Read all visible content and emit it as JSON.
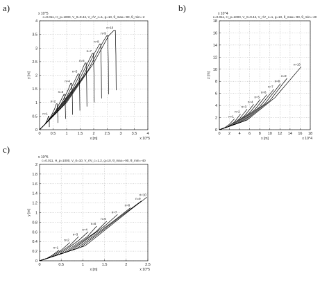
{
  "panel_labels": [
    "a)",
    "b)",
    "c)"
  ],
  "chart_data": [
    {
      "type": "line",
      "panel": "a)",
      "title": "c=0.011, H_p=1000, V_0=9.44, V_r/V_c=1, g=10, θ_max=-90, θ_min=-2",
      "xlabel": "x [m]",
      "ylabel": "y [m]",
      "x_exponent": "x 10^5",
      "y_exponent": "x 10^5",
      "xlim": [
        0,
        4
      ],
      "ylim": [
        0,
        4
      ],
      "xticks": [
        "0",
        "0.5",
        "1",
        "1.5",
        "2",
        "2.5",
        "3",
        "3.5",
        "4"
      ],
      "yticks": [
        "0",
        "0.5",
        "1",
        "1.5",
        "2",
        "2.5",
        "3",
        "3.5",
        "4"
      ],
      "grid": true,
      "series": [
        {
          "name": "n=1",
          "points": [
            [
              0,
              0
            ],
            [
              0.1,
              0.1
            ],
            [
              0.2,
              0.2
            ],
            [
              0.28,
              0.35
            ],
            [
              0.33,
              0.5
            ],
            [
              0.35,
              0.5
            ],
            [
              0.36,
              0.3
            ],
            [
              0.36,
              0.1
            ]
          ]
        },
        {
          "name": "n=2",
          "points": [
            [
              0,
              0
            ],
            [
              0.2,
              0.2
            ],
            [
              0.4,
              0.45
            ],
            [
              0.55,
              0.75
            ],
            [
              0.62,
              0.95
            ],
            [
              0.65,
              0.95
            ],
            [
              0.67,
              0.6
            ],
            [
              0.68,
              0.25
            ]
          ]
        },
        {
          "name": "n=3",
          "points": [
            [
              0,
              0
            ],
            [
              0.3,
              0.3
            ],
            [
              0.6,
              0.7
            ],
            [
              0.8,
              1.1
            ],
            [
              0.9,
              1.3
            ],
            [
              0.93,
              1.3
            ],
            [
              0.95,
              0.9
            ],
            [
              0.96,
              0.4
            ]
          ]
        },
        {
          "name": "n=4",
          "points": [
            [
              0,
              0
            ],
            [
              0.4,
              0.4
            ],
            [
              0.8,
              0.95
            ],
            [
              1.05,
              1.45
            ],
            [
              1.15,
              1.7
            ],
            [
              1.19,
              1.7
            ],
            [
              1.21,
              1.2
            ],
            [
              1.22,
              0.55
            ]
          ]
        },
        {
          "name": "n=5",
          "points": [
            [
              0,
              0
            ],
            [
              0.5,
              0.5
            ],
            [
              1.0,
              1.2
            ],
            [
              1.3,
              1.8
            ],
            [
              1.42,
              2.05
            ],
            [
              1.46,
              2.05
            ],
            [
              1.48,
              1.45
            ],
            [
              1.49,
              0.7
            ]
          ]
        },
        {
          "name": "n=6",
          "points": [
            [
              0,
              0
            ],
            [
              0.6,
              0.6
            ],
            [
              1.2,
              1.45
            ],
            [
              1.55,
              2.15
            ],
            [
              1.68,
              2.45
            ],
            [
              1.72,
              2.45
            ],
            [
              1.74,
              1.75
            ],
            [
              1.75,
              0.85
            ]
          ]
        },
        {
          "name": "n=7",
          "points": [
            [
              0,
              0
            ],
            [
              0.7,
              0.7
            ],
            [
              1.4,
              1.7
            ],
            [
              1.8,
              2.5
            ],
            [
              1.95,
              2.8
            ],
            [
              1.99,
              2.8
            ],
            [
              2.01,
              2.0
            ],
            [
              2.02,
              1.0
            ]
          ]
        },
        {
          "name": "n=8",
          "points": [
            [
              0,
              0
            ],
            [
              0.8,
              0.8
            ],
            [
              1.6,
              1.95
            ],
            [
              2.05,
              2.85
            ],
            [
              2.22,
              3.15
            ],
            [
              2.26,
              3.15
            ],
            [
              2.28,
              2.25
            ],
            [
              2.29,
              1.15
            ]
          ]
        },
        {
          "name": "n=9",
          "points": [
            [
              0,
              0
            ],
            [
              0.9,
              0.9
            ],
            [
              1.8,
              2.2
            ],
            [
              2.3,
              3.15
            ],
            [
              2.48,
              3.45
            ],
            [
              2.52,
              3.45
            ],
            [
              2.54,
              2.5
            ],
            [
              2.55,
              1.3
            ]
          ]
        },
        {
          "name": "n=10",
          "points": [
            [
              0,
              0
            ],
            [
              1.0,
              1.0
            ],
            [
              2.0,
              2.45
            ],
            [
              2.55,
              3.45
            ],
            [
              2.75,
              3.65
            ],
            [
              2.8,
              3.65
            ],
            [
              2.82,
              2.75
            ],
            [
              2.83,
              1.45
            ]
          ]
        }
      ]
    },
    {
      "type": "line",
      "panel": "b)",
      "title": "c=0.011, H_p=1000, V_0=9.44, V_r/V_c=1, g=10, θ_max=-90, θ_min=-40",
      "xlabel": "x [m]",
      "ylabel": "z [m]",
      "x_exponent": "x 10^4",
      "y_exponent": "x 10^4",
      "xlim": [
        0,
        18
      ],
      "ylim": [
        0,
        18
      ],
      "xticks": [
        "0",
        "2",
        "4",
        "6",
        "8",
        "10",
        "12",
        "14",
        "16",
        "18"
      ],
      "yticks": [
        "0",
        "2",
        "4",
        "6",
        "8",
        "10",
        "12",
        "14",
        "16",
        "18"
      ],
      "grid": true,
      "series": [
        {
          "name": "n=1",
          "points": [
            [
              0,
              0
            ],
            [
              1,
              0.3
            ],
            [
              2,
              0.9
            ],
            [
              3,
              1.8
            ]
          ]
        },
        {
          "name": "n=2",
          "points": [
            [
              0,
              0
            ],
            [
              1.5,
              0.4
            ],
            [
              3,
              1.3
            ],
            [
              4.2,
              2.6
            ]
          ]
        },
        {
          "name": "n=3",
          "points": [
            [
              0,
              0
            ],
            [
              2,
              0.55
            ],
            [
              4,
              1.8
            ],
            [
              5.5,
              3.4
            ]
          ]
        },
        {
          "name": "n=4",
          "points": [
            [
              0,
              0
            ],
            [
              2.5,
              0.7
            ],
            [
              5,
              2.3
            ],
            [
              6.8,
              4.2
            ]
          ]
        },
        {
          "name": "n=5",
          "points": [
            [
              0,
              0
            ],
            [
              3,
              0.85
            ],
            [
              6,
              2.8
            ],
            [
              8.1,
              5.0
            ]
          ]
        },
        {
          "name": "n=6",
          "points": [
            [
              0,
              0
            ],
            [
              3.5,
              1.0
            ],
            [
              7,
              3.3
            ],
            [
              9.4,
              5.8
            ]
          ]
        },
        {
          "name": "n=7",
          "points": [
            [
              0,
              0
            ],
            [
              4,
              1.15
            ],
            [
              8,
              3.8
            ],
            [
              10.8,
              6.7
            ]
          ]
        },
        {
          "name": "n=8",
          "points": [
            [
              0,
              0
            ],
            [
              4.5,
              1.3
            ],
            [
              9,
              4.3
            ],
            [
              12.1,
              7.6
            ]
          ]
        },
        {
          "name": "n=9",
          "points": [
            [
              0,
              0
            ],
            [
              5,
              1.45
            ],
            [
              10,
              4.8
            ],
            [
              13.4,
              8.5
            ]
          ]
        },
        {
          "name": "n=10",
          "points": [
            [
              0,
              0
            ],
            [
              5.5,
              1.6
            ],
            [
              11,
              5.3
            ],
            [
              16.2,
              10.4
            ]
          ]
        }
      ]
    },
    {
      "type": "line",
      "panel": "c)",
      "title": "c=0.011, H_p=1000, V_0=10, V_r/V_c=1.2, g=10, θ_max=-90, θ_min=-40",
      "xlabel": "x [m]",
      "ylabel": "y [m]",
      "x_exponent": "x 10^5",
      "y_exponent": "x 10^5",
      "xlim": [
        0,
        2.5
      ],
      "ylim": [
        0,
        2
      ],
      "xticks": [
        "0",
        "0.5",
        "1",
        "1.5",
        "2",
        "2.5"
      ],
      "yticks": [
        "0",
        "0.2",
        "0.4",
        "0.6",
        "0.8",
        "1",
        "1.2",
        "1.4",
        "1.6",
        "1.8",
        "2"
      ],
      "grid": true,
      "series": [
        {
          "name": "n=1",
          "points": [
            [
              0,
              0
            ],
            [
              0.15,
              0.04
            ],
            [
              0.3,
              0.12
            ],
            [
              0.45,
              0.22
            ]
          ]
        },
        {
          "name": "n=2",
          "points": [
            [
              0,
              0
            ],
            [
              0.25,
              0.07
            ],
            [
              0.5,
              0.22
            ],
            [
              0.7,
              0.38
            ]
          ]
        },
        {
          "name": "n=3",
          "points": [
            [
              0,
              0
            ],
            [
              0.35,
              0.1
            ],
            [
              0.7,
              0.32
            ],
            [
              0.9,
              0.5
            ]
          ]
        },
        {
          "name": "n=4",
          "points": [
            [
              0,
              0
            ],
            [
              0.45,
              0.13
            ],
            [
              0.9,
              0.42
            ],
            [
              1.12,
              0.6
            ]
          ]
        },
        {
          "name": "n=5",
          "points": [
            [
              0,
              0
            ],
            [
              0.55,
              0.16
            ],
            [
              1.1,
              0.5
            ],
            [
              1.32,
              0.72
            ]
          ]
        },
        {
          "name": "n=6",
          "points": [
            [
              0,
              0
            ],
            [
              0.65,
              0.19
            ],
            [
              1.3,
              0.6
            ],
            [
              1.55,
              0.82
            ]
          ]
        },
        {
          "name": "n=7",
          "points": [
            [
              0,
              0
            ],
            [
              0.75,
              0.22
            ],
            [
              1.5,
              0.72
            ],
            [
              1.8,
              0.96
            ]
          ]
        },
        {
          "name": "n=8",
          "points": [
            [
              0,
              0
            ],
            [
              0.85,
              0.25
            ],
            [
              1.7,
              0.82
            ],
            [
              2.1,
              1.1
            ]
          ]
        },
        {
          "name": "n=9",
          "points": [
            [
              0,
              0
            ],
            [
              0.95,
              0.28
            ],
            [
              1.9,
              0.94
            ],
            [
              2.35,
              1.24
            ]
          ]
        },
        {
          "name": "n=10",
          "points": [
            [
              0,
              0
            ],
            [
              1.05,
              0.31
            ],
            [
              2.1,
              1.06
            ],
            [
              2.48,
              1.32
            ]
          ]
        }
      ]
    }
  ]
}
